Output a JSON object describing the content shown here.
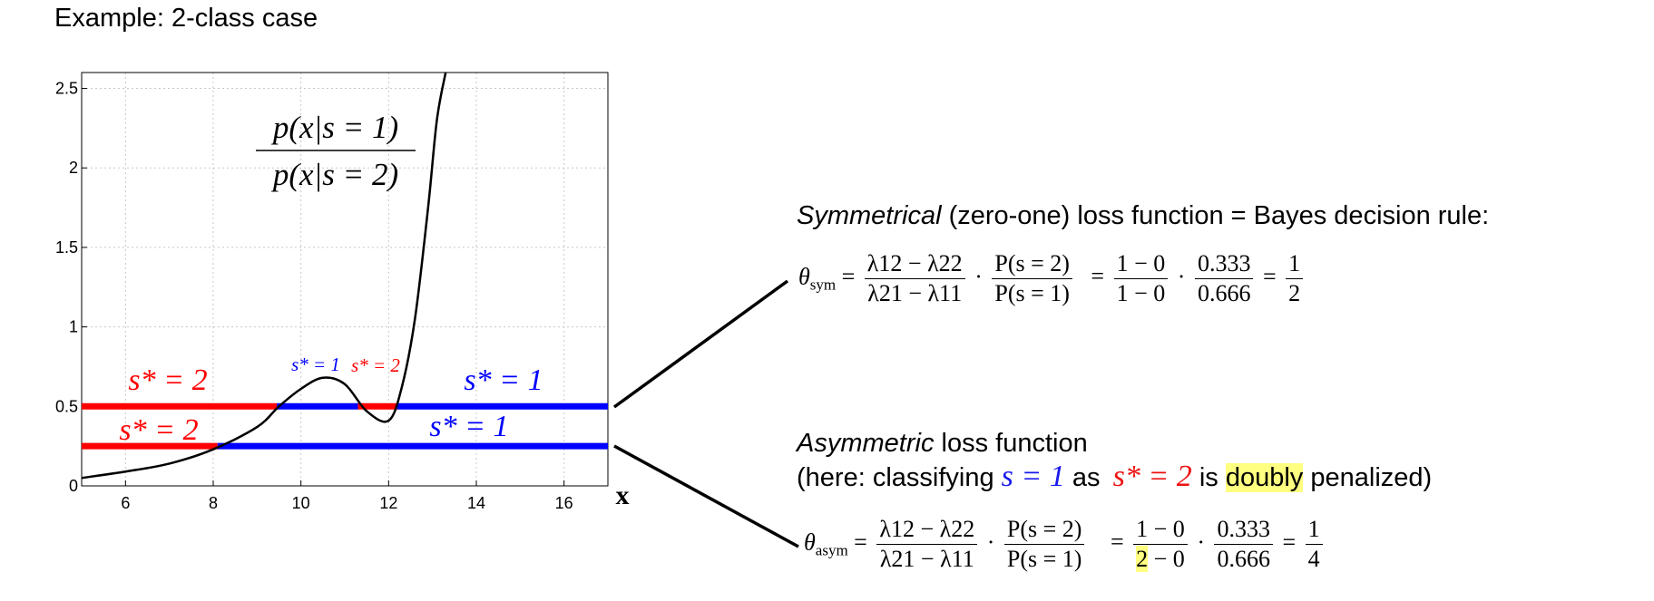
{
  "title": "Example: 2-class case",
  "chart_data": {
    "type": "line",
    "xlim": [
      5,
      17
    ],
    "ylim": [
      0,
      2.6
    ],
    "xticks": [
      "6",
      "8",
      "10",
      "12",
      "14",
      "16"
    ],
    "yticks": [
      "0",
      "0.5",
      "1",
      "1.5",
      "2",
      "2.5"
    ],
    "xlabel": "x",
    "grid": true,
    "curve_label_num": "p(x|s = 1)",
    "curve_label_den": "p(x|s = 2)",
    "likelihood_ratio_curve": {
      "x": [
        5.0,
        6.0,
        7.0,
        8.0,
        9.0,
        9.5,
        10.0,
        10.5,
        11.0,
        11.5,
        12.0,
        12.3,
        12.6,
        12.9,
        13.1,
        13.3
      ],
      "y": [
        0.05,
        0.09,
        0.14,
        0.23,
        0.37,
        0.5,
        0.61,
        0.68,
        0.64,
        0.47,
        0.41,
        0.62,
        1.05,
        1.75,
        2.3,
        2.6
      ]
    },
    "threshold_lines": [
      {
        "theta": 0.5,
        "segments": [
          {
            "from": 5.0,
            "to": 9.45,
            "class": "s*=2",
            "color": "#ff0000"
          },
          {
            "from": 9.45,
            "to": 11.3,
            "class": "s*=1",
            "color": "#0000ff"
          },
          {
            "from": 11.3,
            "to": 12.2,
            "class": "s*=2",
            "color": "#ff0000"
          },
          {
            "from": 12.2,
            "to": 17.0,
            "class": "s*=1",
            "color": "#0000ff"
          }
        ]
      },
      {
        "theta": 0.25,
        "segments": [
          {
            "from": 5.0,
            "to": 8.1,
            "class": "s*=2",
            "color": "#ff0000"
          },
          {
            "from": 8.1,
            "to": 17.0,
            "class": "s*=1",
            "color": "#0000ff"
          }
        ]
      }
    ],
    "annotations": {
      "upper_left": "s* = 2",
      "upper_right": "s* = 1",
      "small_blue": "s* = 1",
      "small_red": "s* = 2",
      "lower_left": "s* = 2",
      "lower_right": "s* = 1"
    }
  },
  "symmetric": {
    "heading_italic": "Symmetrical",
    "heading_rest": " (zero-one) loss function = Bayes decision rule:",
    "theta": "θ",
    "theta_sub": "sym",
    "lam_num": "λ12 − λ22",
    "lam_den": "λ21 − λ11",
    "p_num": "P(s = 2)",
    "p_den": "P(s = 1)",
    "v_num": "1 − 0",
    "v_den": "1 − 0",
    "r_num": "0.333",
    "r_den": "0.666",
    "res_num": "1",
    "res_den": "2"
  },
  "asymmetric": {
    "heading_italic": "Asymmetric",
    "heading_rest": " loss function",
    "line2_a": "(here: classifying ",
    "line2_s": "s = 1",
    "line2_b": " as ",
    "line2_sstar": "s* = 2",
    "line2_c": " is ",
    "line2_hl": "doubly",
    "line2_d": " penalized)",
    "theta": "θ",
    "theta_sub": "asym",
    "lam_num": "λ12 − λ22",
    "lam_den": "λ21 − λ11",
    "p_num": "P(s = 2)",
    "p_den": "P(s = 1)",
    "v_num": "1 − 0",
    "v_den_hl": "2",
    "v_den_rest": " − 0",
    "r_num": "0.333",
    "r_den": "0.666",
    "res_num": "1",
    "res_den": "4"
  },
  "colors": {
    "red": "#ff0000",
    "blue": "#0000ff",
    "highlight": "#ffff80"
  }
}
